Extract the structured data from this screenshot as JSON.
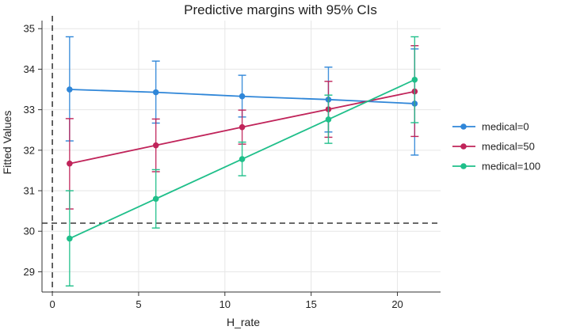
{
  "chart_data": {
    "type": "line",
    "title": "Predictive margins with 95% CIs",
    "xlabel": "H_rate",
    "ylabel": "Fitted Values",
    "xlim": [
      -0.6,
      22.5
    ],
    "ylim": [
      28.5,
      35.2
    ],
    "xticks": [
      0,
      5,
      10,
      15,
      20
    ],
    "yticks": [
      29,
      30,
      31,
      32,
      33,
      34,
      35
    ],
    "grid": true,
    "legend_position": "right",
    "reference_lines": {
      "vertical_x": 0,
      "horizontal_y": 30.2
    },
    "x": [
      1,
      6,
      11,
      16,
      21
    ],
    "series": [
      {
        "name": "medical=0",
        "color": "#2f86d8",
        "values": [
          33.5,
          33.43,
          33.33,
          33.25,
          33.15
        ],
        "ci_low": [
          32.23,
          32.67,
          32.82,
          32.45,
          31.88
        ],
        "ci_high": [
          34.8,
          34.2,
          33.85,
          34.05,
          34.5
        ]
      },
      {
        "name": "medical=50",
        "color": "#c0245a",
        "values": [
          31.67,
          32.12,
          32.57,
          33.01,
          33.45
        ],
        "ci_low": [
          30.55,
          31.47,
          32.15,
          32.32,
          32.34
        ],
        "ci_high": [
          32.78,
          32.77,
          32.99,
          33.7,
          34.58
        ]
      },
      {
        "name": "medical=100",
        "color": "#1fbf8a",
        "values": [
          29.82,
          30.8,
          31.78,
          32.76,
          33.74
        ],
        "ci_low": [
          28.65,
          30.08,
          31.37,
          32.17,
          32.68
        ],
        "ci_high": [
          31.0,
          31.52,
          32.2,
          33.36,
          34.8
        ]
      }
    ]
  }
}
